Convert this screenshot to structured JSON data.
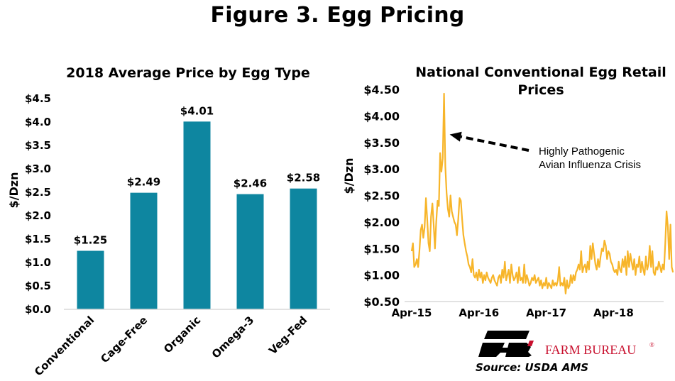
{
  "page": {
    "title": "Figure 3. Egg Pricing",
    "source": "Source: USDA AMS",
    "logo_text": "FARM BUREAU",
    "logo_mark": "®"
  },
  "colors": {
    "bar": "#0e86a0",
    "line": "#f7b52a",
    "brand_red": "#c8102e",
    "axis": "#d9d9d9"
  },
  "chart_data": [
    {
      "type": "bar",
      "title": "2018 Average Price by Egg Type",
      "ylabel": "$/Dzn",
      "xlabel": "",
      "categories": [
        "Conventional",
        "Cage-Free",
        "Organic",
        "Omega-3",
        "Veg-Fed"
      ],
      "values": [
        1.25,
        2.49,
        4.01,
        2.46,
        2.58
      ],
      "data_labels": [
        "$1.25",
        "$2.49",
        "$4.01",
        "$2.46",
        "$2.58"
      ],
      "ylim": [
        0,
        4.5
      ],
      "yticks": [
        0,
        0.5,
        1.0,
        1.5,
        2.0,
        2.5,
        3.0,
        3.5,
        4.0,
        4.5
      ],
      "ytick_labels": [
        "$0.0",
        "$0.5",
        "$1.0",
        "$1.5",
        "$2.0",
        "$2.5",
        "$3.0",
        "$3.5",
        "$4.0",
        "$4.5"
      ],
      "grid": false,
      "legend": "none"
    },
    {
      "type": "line",
      "title": "National Conventional Egg Retail Prices",
      "ylabel": "$/Dzn",
      "xlabel": "",
      "ylim": [
        0.5,
        4.5
      ],
      "yticks": [
        0.5,
        1.0,
        1.5,
        2.0,
        2.5,
        3.0,
        3.5,
        4.0,
        4.5
      ],
      "ytick_labels": [
        "$0.50",
        "$1.00",
        "$1.50",
        "$2.00",
        "$2.50",
        "$3.00",
        "$3.50",
        "$4.00",
        "$4.50"
      ],
      "x_start": "Apr-15",
      "x_step": "week",
      "x_ticks": [
        {
          "label": "Apr-15",
          "week": 0
        },
        {
          "label": "Apr-16",
          "week": 52
        },
        {
          "label": "Apr-17",
          "week": 104
        },
        {
          "label": "Apr-18",
          "week": 156
        }
      ],
      "annotation": {
        "lines": [
          "Highly Pathogenic",
          "Avian Influenza Crisis"
        ],
        "arrow_target_week": 25,
        "arrow_target_value": 3.65
      },
      "grid": false,
      "legend": "none",
      "series": [
        {
          "values": [
            1.45,
            1.6,
            1.15,
            1.2,
            1.3,
            1.15,
            1.45,
            1.85,
            1.95,
            1.7,
            1.9,
            2.45,
            2.05,
            1.6,
            1.45,
            2.1,
            2.35,
            1.95,
            1.5,
            2.0,
            2.4,
            2.3,
            3.3,
            2.95,
            3.2,
            4.42,
            3.05,
            2.55,
            2.25,
            2.1,
            2.5,
            2.2,
            2.1,
            2.0,
            1.95,
            1.75,
            2.05,
            2.45,
            2.4,
            2.05,
            1.75,
            1.6,
            1.45,
            1.35,
            1.2,
            1.15,
            1.05,
            1.3,
            1.0,
            0.95,
            1.05,
            0.9,
            1.1,
            0.95,
            1.05,
            0.85,
            1.0,
            0.9,
            1.05,
            0.95,
            0.9,
            0.85,
            0.95,
            1.0,
            0.9,
            0.85,
            0.8,
            0.95,
            1.0,
            0.85,
            1.1,
            0.95,
            1.25,
            0.9,
            1.0,
            1.1,
            0.85,
            1.2,
            1.0,
            0.9,
            0.95,
            1.05,
            0.85,
            1.15,
            0.9,
            0.95,
            0.85,
            1.2,
            0.85,
            1.0,
            0.9,
            0.8,
            0.85,
            0.95,
            0.9,
            1.0,
            0.85,
            0.9,
            0.95,
            0.8,
            0.9,
            0.75,
            0.85,
            0.8,
            0.95,
            0.75,
            0.85,
            0.8,
            0.75,
            0.9,
            0.8,
            0.85,
            0.8,
            0.9,
            1.15,
            0.8,
            0.85,
            0.8,
            0.95,
            0.65,
            0.9,
            0.75,
            0.8,
            1.0,
            0.85,
            1.0,
            0.9,
            1.05,
            1.1,
            1.2,
            1.1,
            1.45,
            1.05,
            1.15,
            1.2,
            1.05,
            1.25,
            1.1,
            1.55,
            1.3,
            1.6,
            1.4,
            1.2,
            1.1,
            1.3,
            1.15,
            1.35,
            1.5,
            1.45,
            1.65,
            1.55,
            1.3,
            1.45,
            1.4,
            1.25,
            1.2,
            1.1,
            1.05,
            1.1,
            1.0,
            1.25,
            1.1,
            1.05,
            1.3,
            1.15,
            1.35,
            1.0,
            1.45,
            1.15,
            1.4,
            1.25,
            1.1,
            1.3,
            1.0,
            1.2,
            1.15,
            1.35,
            1.05,
            1.25,
            1.1,
            1.0,
            1.35,
            1.1,
            1.2,
            1.55,
            1.15,
            1.45,
            1.05,
            1.0,
            1.15,
            1.1,
            1.25,
            1.15,
            1.05,
            1.2,
            1.1,
            1.6,
            2.2,
            1.9,
            1.3,
            1.95,
            1.15,
            1.05
          ]
        }
      ]
    }
  ]
}
